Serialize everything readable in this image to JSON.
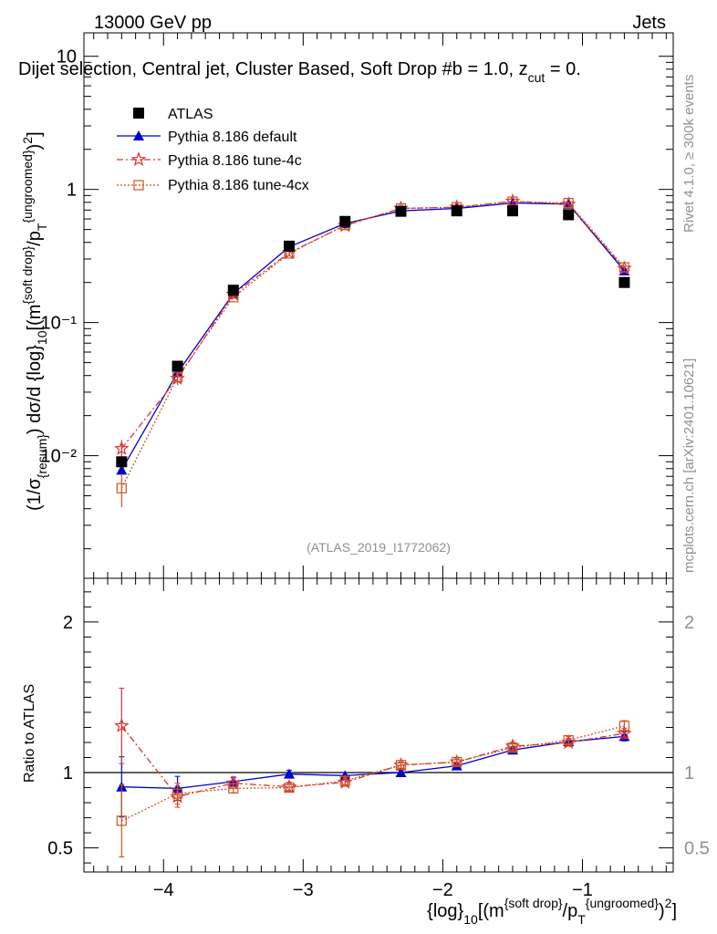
{
  "header": {
    "energy_label": "13000 GeV pp",
    "category_label": "Jets",
    "title": "Dijet selection, Central jet, Cluster Based, Soft Drop #b = 1.0, z",
    "title_subscript": "cut",
    "title_tail": " = 0.",
    "analysis_id": "(ATLAS_2019_I1772062)",
    "rivet_label": "Rivet 4.1.0, ≥ 300k events",
    "mcplots_label": "mcplots.cern.ch [arXiv:2401.10621]"
  },
  "colors": {
    "atlas": "#000000",
    "default": "#0000cc",
    "tune4c": "#dd3333",
    "tune4cx": "#cc5522"
  },
  "chart_data": [
    {
      "type": "line",
      "panel": "main",
      "ylabel": "(1/σ_{resum}) dσ/d {log}_10[(m^{soft drop}/p_T^{ungroomed})^2]",
      "yscale": "log",
      "ylim": [
        0.0012,
        15
      ],
      "xlim": [
        -4.57,
        -0.35
      ],
      "ytick_labels": [
        "10⁻²",
        "10⁻¹",
        "1",
        "10"
      ],
      "ytick_values": [
        0.01,
        0.1,
        1,
        10
      ],
      "x": [
        -4.3,
        -3.9,
        -3.5,
        -3.1,
        -2.7,
        -2.3,
        -1.9,
        -1.5,
        -1.1,
        -0.7
      ],
      "series": [
        {
          "name": "ATLAS",
          "marker": "square",
          "values": [
            0.009,
            0.047,
            0.175,
            0.375,
            0.575,
            0.685,
            0.69,
            0.69,
            0.645,
            0.2
          ]
        },
        {
          "name": "Pythia 8.186 default",
          "marker": "triangle",
          "values": [
            0.0078,
            0.042,
            0.165,
            0.37,
            0.555,
            0.69,
            0.72,
            0.79,
            0.775,
            0.245
          ],
          "errors": [
            0.0006,
            0.003,
            0.006,
            0.008,
            0.01,
            0.01,
            0.01,
            0.012,
            0.012,
            0.008
          ]
        },
        {
          "name": "Pythia 8.186 tune-4c",
          "marker": "star",
          "values": [
            0.0113,
            0.038,
            0.163,
            0.335,
            0.535,
            0.72,
            0.735,
            0.815,
            0.775,
            0.255
          ],
          "errors": [
            0.0018,
            0.004,
            0.006,
            0.008,
            0.01,
            0.012,
            0.012,
            0.012,
            0.012,
            0.008
          ]
        },
        {
          "name": "Pythia 8.186 tune-4cx",
          "marker": "open-square",
          "values": [
            0.0057,
            0.039,
            0.155,
            0.33,
            0.54,
            0.72,
            0.735,
            0.81,
            0.79,
            0.26
          ],
          "errors": [
            0.0016,
            0.003,
            0.005,
            0.008,
            0.01,
            0.012,
            0.012,
            0.012,
            0.012,
            0.008
          ]
        }
      ]
    },
    {
      "type": "line",
      "panel": "ratio",
      "ylabel": "Ratio to ATLAS",
      "xlabel": "{log}_10[(m^{soft drop}/p_T^{ungroomed})^2]",
      "ylim": [
        0.34,
        2.29
      ],
      "xlim": [
        -4.57,
        -0.35
      ],
      "ytick_labels": [
        "0.5",
        "1",
        "2"
      ],
      "ytick_values": [
        0.5,
        1,
        2
      ],
      "xtick_labels": [
        "−4",
        "−3",
        "−2",
        "−1"
      ],
      "xtick_values": [
        -4,
        -3,
        -2,
        -1
      ],
      "x": [
        -4.3,
        -3.9,
        -3.5,
        -3.1,
        -2.7,
        -2.3,
        -1.9,
        -1.5,
        -1.1,
        -0.7
      ],
      "series": [
        {
          "name": "Pythia 8.186 default",
          "values": [
            0.905,
            0.895,
            0.94,
            0.99,
            0.98,
            1.0,
            1.045,
            1.15,
            1.205,
            1.24
          ],
          "errors": [
            0.2,
            0.08,
            0.03,
            0.025,
            0.02,
            0.015,
            0.015,
            0.02,
            0.02,
            0.03
          ]
        },
        {
          "name": "Pythia 8.186 tune-4c",
          "values": [
            1.31,
            0.84,
            0.93,
            0.905,
            0.935,
            1.05,
            1.07,
            1.175,
            1.2,
            1.26
          ],
          "errors": [
            0.25,
            0.07,
            0.035,
            0.03,
            0.025,
            0.02,
            0.02,
            0.025,
            0.025,
            0.035
          ]
        },
        {
          "name": "Pythia 8.186 tune-4cx",
          "values": [
            0.68,
            0.86,
            0.895,
            0.9,
            0.945,
            1.05,
            1.07,
            1.165,
            1.215,
            1.31
          ],
          "errors": [
            0.24,
            0.07,
            0.03,
            0.03,
            0.025,
            0.02,
            0.02,
            0.025,
            0.025,
            0.035
          ]
        }
      ]
    }
  ]
}
